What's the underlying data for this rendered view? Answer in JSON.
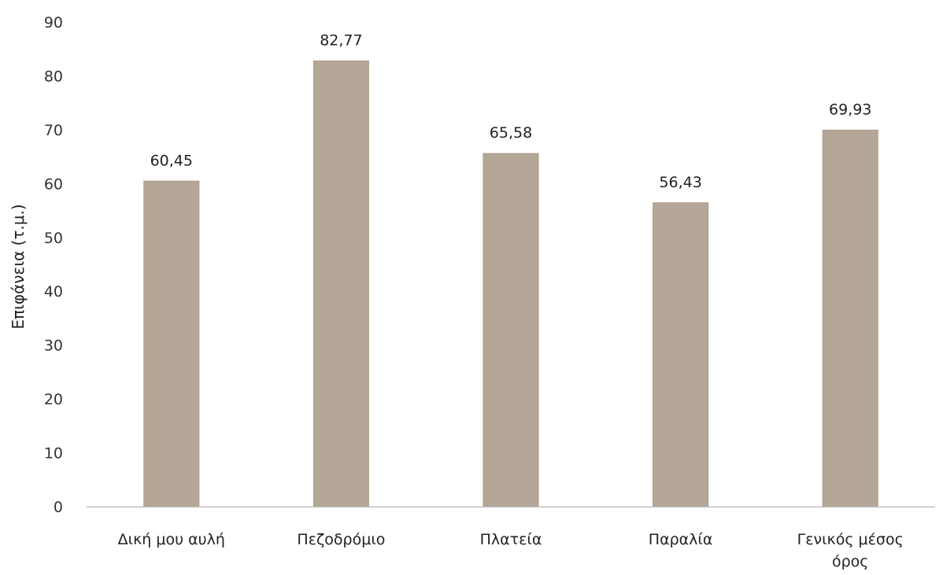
{
  "chart_data": {
    "type": "bar",
    "categories": [
      "Δική μου αυλή",
      "Πεζοδρόμιο",
      "Πλατεία",
      "Παραλία",
      "Γενικός μέσος όρος"
    ],
    "category_lines": [
      [
        "Δική μου αυλή"
      ],
      [
        "Πεζοδρόμιο"
      ],
      [
        "Πλατεία"
      ],
      [
        "Παραλία"
      ],
      [
        "Γενικός μέσος",
        "όρος"
      ]
    ],
    "values": [
      60.45,
      82.77,
      65.58,
      56.43,
      69.93
    ],
    "data_labels": [
      "60,45",
      "82,77",
      "65,58",
      "56,43",
      "69,93"
    ],
    "title": "",
    "xlabel": "",
    "ylabel": "Επιφάνεια (τ.μ.)",
    "ylim": [
      0,
      90
    ],
    "yticks": [
      0,
      10,
      20,
      30,
      40,
      50,
      60,
      70,
      80,
      90
    ],
    "grid": false,
    "legend": "none",
    "bar_color": "#b5a797",
    "axis_color": "#bfbfbf"
  }
}
